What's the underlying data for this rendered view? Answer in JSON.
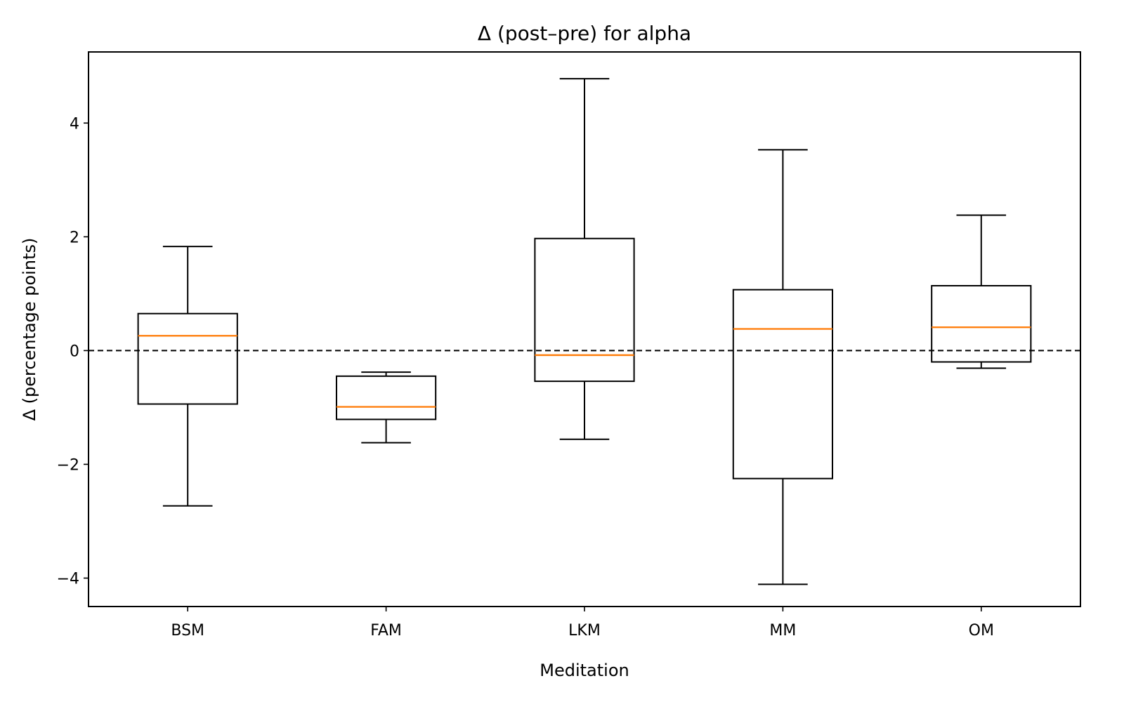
{
  "chart_data": {
    "type": "box",
    "title": "Δ (post–pre) for alpha",
    "xlabel": "Meditation",
    "ylabel": "Δ (percentage points)",
    "categories": [
      "BSM",
      "FAM",
      "LKM",
      "MM",
      "OM"
    ],
    "ylim": [
      -4.5,
      5.25
    ],
    "yticks": [
      -4,
      -2,
      0,
      2,
      4
    ],
    "ytick_labels": [
      "−4",
      "−2",
      "0",
      "2",
      "4"
    ],
    "grid": false,
    "reference_line": {
      "y": 0,
      "style": "dashed"
    },
    "boxes": [
      {
        "category": "BSM",
        "whisker_low": -2.73,
        "q1": -0.94,
        "median": 0.26,
        "q3": 0.65,
        "whisker_high": 1.83
      },
      {
        "category": "FAM",
        "whisker_low": -1.62,
        "q1": -1.21,
        "median": -0.99,
        "q3": -0.45,
        "whisker_high": -0.38
      },
      {
        "category": "LKM",
        "whisker_low": -1.56,
        "q1": -0.54,
        "median": -0.08,
        "q3": 1.97,
        "whisker_high": 4.78
      },
      {
        "category": "MM",
        "whisker_low": -4.11,
        "q1": -2.25,
        "median": 0.38,
        "q3": 1.07,
        "whisker_high": 3.53
      },
      {
        "category": "OM",
        "whisker_low": -0.31,
        "q1": -0.2,
        "median": 0.41,
        "q3": 1.14,
        "whisker_high": 2.38
      }
    ],
    "colors": {
      "box": "#000000",
      "median": "#ff7f0e",
      "reference_line": "#000000"
    }
  }
}
